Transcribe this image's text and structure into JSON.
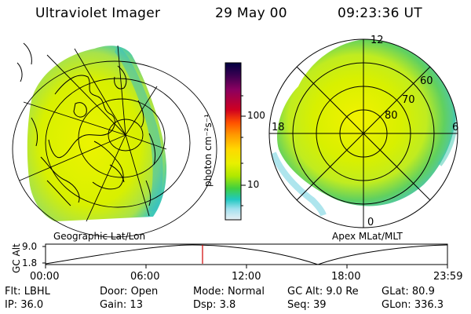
{
  "header": {
    "instrument": "Ultraviolet Imager",
    "date": "29 May 00",
    "time": "09:23:36 UT"
  },
  "geo_panel": {
    "label": "Geographic Lat/Lon"
  },
  "polar_panel": {
    "label": "Apex MLat/MLT",
    "mlt_labels": {
      "top": "12",
      "left": "18",
      "right": "6",
      "bottom": "0"
    },
    "lat_labels": [
      "60",
      "70",
      "80"
    ]
  },
  "colorbar": {
    "label": "photon cm⁻²s⁻¹",
    "ticks": [
      "100",
      "10"
    ],
    "colors": [
      "#000040",
      "#3a0050",
      "#8a0060",
      "#d00020",
      "#ff5000",
      "#ff9a00",
      "#ffd800",
      "#e8f000",
      "#b0e800",
      "#40d040",
      "#20c8c0",
      "#a0e0ee",
      "#e8f0f4"
    ]
  },
  "altitude_plot": {
    "ylabel": "GC Alt",
    "y_ticks": [
      "9.0",
      "1.8"
    ],
    "x_ticks": [
      "00:00",
      "06:00",
      "12:00",
      "18:00",
      "23:59"
    ],
    "current_time_marker": "09:23:36"
  },
  "status": {
    "row1": [
      {
        "key": "Flt:",
        "value": "LBHL"
      },
      {
        "key": "Door:",
        "value": "Open"
      },
      {
        "key": "Mode:",
        "value": "Normal"
      },
      {
        "key": "GC Alt:",
        "value": "9.0 Re"
      },
      {
        "key": "GLat:",
        "value": "80.9"
      }
    ],
    "row2": [
      {
        "key": "IP:",
        "value": "36.0"
      },
      {
        "key": "Gain:",
        "value": "13"
      },
      {
        "key": "Dsp:",
        "value": "3.8"
      },
      {
        "key": "Seq:",
        "value": "39"
      },
      {
        "key": "GLon:",
        "value": "336.3"
      }
    ]
  }
}
